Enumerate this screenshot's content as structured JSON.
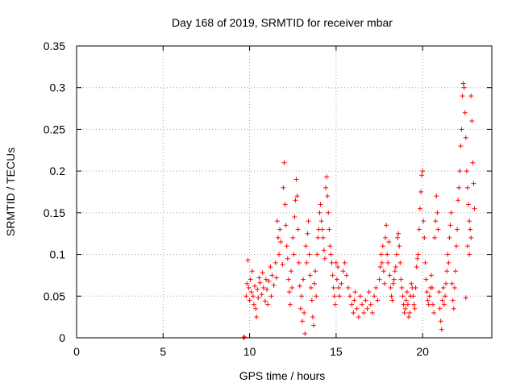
{
  "chart_data": {
    "type": "scatter",
    "title": "Day 168 of 2019, SRMTID for receiver mbar",
    "xlabel": "GPS time / hours",
    "ylabel": "SRMTID / TECUs",
    "xlim": [
      0,
      24
    ],
    "ylim": [
      0,
      0.35
    ],
    "xticks": [
      0,
      5,
      10,
      15,
      20
    ],
    "xtick_labels": [
      "0",
      "5",
      "10",
      "15",
      "20"
    ],
    "yticks": [
      0,
      0.05,
      0.1,
      0.15,
      0.2,
      0.25,
      0.3,
      0.35
    ],
    "ytick_labels": [
      "0",
      "0.05",
      "0.1",
      "0.15",
      "0.2",
      "0.25",
      "0.3",
      "0.35"
    ],
    "grid": true,
    "marker": "plus",
    "color": "#ff0000",
    "points": [
      [
        9.65,
        0.0
      ],
      [
        9.7,
        0.001
      ],
      [
        9.8,
        0.05
      ],
      [
        9.85,
        0.065
      ],
      [
        9.9,
        0.093
      ],
      [
        9.95,
        0.06
      ],
      [
        10.0,
        0.045
      ],
      [
        10.05,
        0.07
      ],
      [
        10.1,
        0.055
      ],
      [
        10.15,
        0.08
      ],
      [
        10.2,
        0.05
      ],
      [
        10.25,
        0.04
      ],
      [
        10.3,
        0.062
      ],
      [
        10.35,
        0.035
      ],
      [
        10.4,
        0.025
      ],
      [
        10.45,
        0.058
      ],
      [
        10.5,
        0.048
      ],
      [
        10.55,
        0.072
      ],
      [
        10.6,
        0.066
      ],
      [
        10.7,
        0.052
      ],
      [
        10.75,
        0.078
      ],
      [
        10.8,
        0.06
      ],
      [
        10.9,
        0.044
      ],
      [
        10.95,
        0.07
      ],
      [
        11.0,
        0.058
      ],
      [
        11.05,
        0.04
      ],
      [
        11.1,
        0.068
      ],
      [
        11.2,
        0.085
      ],
      [
        11.25,
        0.05
      ],
      [
        11.3,
        0.075
      ],
      [
        11.4,
        0.063
      ],
      [
        11.5,
        0.09
      ],
      [
        11.55,
        0.072
      ],
      [
        11.6,
        0.14
      ],
      [
        11.65,
        0.12
      ],
      [
        11.7,
        0.1
      ],
      [
        11.75,
        0.13
      ],
      [
        11.8,
        0.115
      ],
      [
        11.9,
        0.088
      ],
      [
        11.95,
        0.18
      ],
      [
        12.0,
        0.21
      ],
      [
        12.05,
        0.16
      ],
      [
        12.1,
        0.135
      ],
      [
        12.15,
        0.11
      ],
      [
        12.2,
        0.095
      ],
      [
        12.25,
        0.07
      ],
      [
        12.3,
        0.055
      ],
      [
        12.35,
        0.04
      ],
      [
        12.4,
        0.08
      ],
      [
        12.45,
        0.06
      ],
      [
        12.5,
        0.12
      ],
      [
        12.55,
        0.1
      ],
      [
        12.6,
        0.145
      ],
      [
        12.65,
        0.165
      ],
      [
        12.7,
        0.19
      ],
      [
        12.75,
        0.17
      ],
      [
        12.8,
        0.13
      ],
      [
        12.85,
        0.09
      ],
      [
        12.9,
        0.062
      ],
      [
        12.95,
        0.035
      ],
      [
        13.0,
        0.05
      ],
      [
        13.05,
        0.02
      ],
      [
        13.1,
        0.07
      ],
      [
        13.15,
        0.03
      ],
      [
        13.2,
        0.005
      ],
      [
        13.25,
        0.11
      ],
      [
        13.3,
        0.09
      ],
      [
        13.35,
        0.125
      ],
      [
        13.4,
        0.14
      ],
      [
        13.45,
        0.1
      ],
      [
        13.5,
        0.075
      ],
      [
        13.55,
        0.06
      ],
      [
        13.6,
        0.045
      ],
      [
        13.65,
        0.025
      ],
      [
        13.7,
        0.015
      ],
      [
        13.75,
        0.065
      ],
      [
        13.8,
        0.08
      ],
      [
        13.85,
        0.05
      ],
      [
        13.9,
        0.1
      ],
      [
        13.95,
        0.12
      ],
      [
        14.0,
        0.13
      ],
      [
        14.05,
        0.15
      ],
      [
        14.1,
        0.16
      ],
      [
        14.15,
        0.14
      ],
      [
        14.2,
        0.13
      ],
      [
        14.25,
        0.12
      ],
      [
        14.3,
        0.105
      ],
      [
        14.35,
        0.095
      ],
      [
        14.4,
        0.18
      ],
      [
        14.45,
        0.193
      ],
      [
        14.5,
        0.17
      ],
      [
        14.55,
        0.15
      ],
      [
        14.6,
        0.13
      ],
      [
        14.65,
        0.11
      ],
      [
        14.7,
        0.1
      ],
      [
        14.75,
        0.09
      ],
      [
        14.8,
        0.075
      ],
      [
        14.85,
        0.06
      ],
      [
        14.9,
        0.05
      ],
      [
        14.95,
        0.04
      ],
      [
        15.0,
        0.09
      ],
      [
        15.05,
        0.07
      ],
      [
        15.1,
        0.085
      ],
      [
        15.15,
        0.06
      ],
      [
        15.2,
        0.05
      ],
      [
        15.3,
        0.065
      ],
      [
        15.4,
        0.08
      ],
      [
        15.5,
        0.09
      ],
      [
        15.6,
        0.075
      ],
      [
        15.7,
        0.06
      ],
      [
        15.8,
        0.05
      ],
      [
        15.9,
        0.04
      ],
      [
        16.0,
        0.03
      ],
      [
        16.05,
        0.045
      ],
      [
        16.1,
        0.055
      ],
      [
        16.2,
        0.035
      ],
      [
        16.3,
        0.025
      ],
      [
        16.4,
        0.05
      ],
      [
        16.5,
        0.04
      ],
      [
        16.6,
        0.03
      ],
      [
        16.7,
        0.045
      ],
      [
        16.8,
        0.035
      ],
      [
        16.9,
        0.055
      ],
      [
        17.0,
        0.04
      ],
      [
        17.1,
        0.03
      ],
      [
        17.2,
        0.05
      ],
      [
        17.3,
        0.06
      ],
      [
        17.4,
        0.045
      ],
      [
        17.5,
        0.07
      ],
      [
        17.55,
        0.085
      ],
      [
        17.6,
        0.1
      ],
      [
        17.65,
        0.09
      ],
      [
        17.7,
        0.11
      ],
      [
        17.75,
        0.08
      ],
      [
        17.8,
        0.065
      ],
      [
        17.85,
        0.12
      ],
      [
        17.9,
        0.135
      ],
      [
        17.95,
        0.1
      ],
      [
        18.0,
        0.09
      ],
      [
        18.05,
        0.115
      ],
      [
        18.1,
        0.075
      ],
      [
        18.15,
        0.06
      ],
      [
        18.2,
        0.05
      ],
      [
        18.25,
        0.045
      ],
      [
        18.3,
        0.065
      ],
      [
        18.35,
        0.07
      ],
      [
        18.4,
        0.08
      ],
      [
        18.45,
        0.085
      ],
      [
        18.5,
        0.1
      ],
      [
        18.55,
        0.12
      ],
      [
        18.6,
        0.125
      ],
      [
        18.65,
        0.11
      ],
      [
        18.7,
        0.09
      ],
      [
        18.75,
        0.07
      ],
      [
        18.8,
        0.06
      ],
      [
        18.85,
        0.05
      ],
      [
        18.9,
        0.04
      ],
      [
        18.95,
        0.03
      ],
      [
        19.0,
        0.035
      ],
      [
        19.05,
        0.045
      ],
      [
        19.1,
        0.055
      ],
      [
        19.15,
        0.04
      ],
      [
        19.2,
        0.025
      ],
      [
        19.25,
        0.03
      ],
      [
        19.3,
        0.05
      ],
      [
        19.35,
        0.065
      ],
      [
        19.4,
        0.06
      ],
      [
        19.45,
        0.05
      ],
      [
        19.5,
        0.04
      ],
      [
        19.55,
        0.035
      ],
      [
        19.6,
        0.06
      ],
      [
        19.65,
        0.085
      ],
      [
        19.7,
        0.095
      ],
      [
        19.75,
        0.1
      ],
      [
        19.8,
        0.13
      ],
      [
        19.85,
        0.155
      ],
      [
        19.9,
        0.175
      ],
      [
        19.95,
        0.195
      ],
      [
        20.0,
        0.2
      ],
      [
        20.05,
        0.14
      ],
      [
        20.1,
        0.12
      ],
      [
        20.15,
        0.09
      ],
      [
        20.2,
        0.07
      ],
      [
        20.25,
        0.055
      ],
      [
        20.3,
        0.045
      ],
      [
        20.35,
        0.04
      ],
      [
        20.4,
        0.05
      ],
      [
        20.45,
        0.06
      ],
      [
        20.5,
        0.075
      ],
      [
        20.55,
        0.06
      ],
      [
        20.6,
        0.04
      ],
      [
        20.65,
        0.03
      ],
      [
        20.7,
        0.12
      ],
      [
        20.75,
        0.14
      ],
      [
        20.8,
        0.17
      ],
      [
        20.85,
        0.15
      ],
      [
        20.9,
        0.13
      ],
      [
        20.95,
        0.055
      ],
      [
        21.0,
        0.035
      ],
      [
        21.05,
        0.02
      ],
      [
        21.1,
        0.01
      ],
      [
        21.15,
        0.045
      ],
      [
        21.2,
        0.06
      ],
      [
        21.25,
        0.04
      ],
      [
        21.3,
        0.05
      ],
      [
        21.35,
        0.065
      ],
      [
        21.4,
        0.08
      ],
      [
        21.45,
        0.1
      ],
      [
        21.5,
        0.09
      ],
      [
        21.55,
        0.12
      ],
      [
        21.6,
        0.135
      ],
      [
        21.65,
        0.15
      ],
      [
        21.7,
        0.065
      ],
      [
        21.75,
        0.045
      ],
      [
        21.8,
        0.035
      ],
      [
        21.85,
        0.06
      ],
      [
        21.9,
        0.08
      ],
      [
        21.95,
        0.11
      ],
      [
        22.0,
        0.13
      ],
      [
        22.05,
        0.165
      ],
      [
        22.1,
        0.18
      ],
      [
        22.15,
        0.2
      ],
      [
        22.2,
        0.23
      ],
      [
        22.25,
        0.25
      ],
      [
        22.3,
        0.29
      ],
      [
        22.35,
        0.305
      ],
      [
        22.4,
        0.3
      ],
      [
        22.45,
        0.27
      ],
      [
        22.5,
        0.24
      ],
      [
        22.55,
        0.2
      ],
      [
        22.6,
        0.18
      ],
      [
        22.65,
        0.16
      ],
      [
        22.7,
        0.14
      ],
      [
        22.75,
        0.13
      ],
      [
        22.8,
        0.29
      ],
      [
        22.85,
        0.26
      ],
      [
        22.9,
        0.21
      ],
      [
        22.95,
        0.185
      ],
      [
        23.0,
        0.155
      ],
      [
        22.5,
        0.048
      ],
      [
        22.6,
        0.11
      ],
      [
        22.7,
        0.1
      ],
      [
        22.8,
        0.12
      ]
    ]
  }
}
